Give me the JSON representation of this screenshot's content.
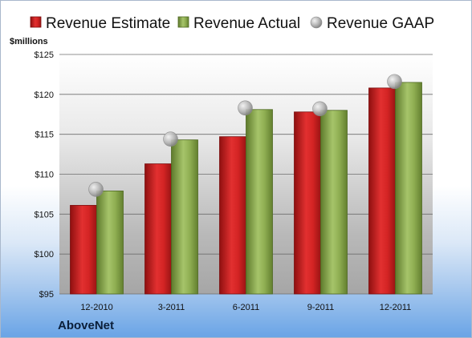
{
  "chart_data": {
    "type": "bar",
    "title": "",
    "company": "AboveNet",
    "unit_label": "$millions",
    "categories": [
      "12-2010",
      "3-2011",
      "6-2011",
      "9-2011",
      "12-2011"
    ],
    "y_ticks": [
      "$95",
      "$100",
      "$105",
      "$110",
      "$115",
      "$120",
      "$125"
    ],
    "ylim": [
      95,
      125
    ],
    "grid": true,
    "legend_position": "top",
    "series": [
      {
        "name": "Revenue Estimate",
        "kind": "bar",
        "color": "#d42424",
        "values": [
          106.1,
          111.3,
          114.7,
          117.8,
          120.8
        ]
      },
      {
        "name": "Revenue Actual",
        "kind": "bar",
        "color": "#8fae52",
        "values": [
          107.9,
          114.3,
          118.1,
          118.0,
          121.5
        ]
      },
      {
        "name": "Revenue GAAP",
        "kind": "marker",
        "color": "#b4b4b4",
        "values": [
          108.1,
          114.4,
          118.3,
          118.2,
          121.6
        ]
      }
    ]
  }
}
